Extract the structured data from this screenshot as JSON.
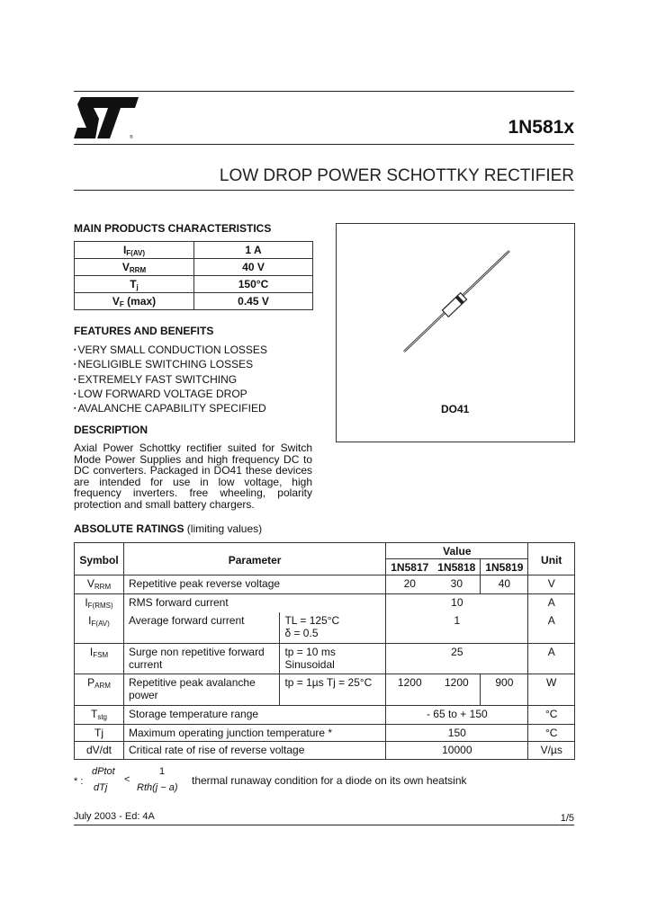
{
  "header": {
    "logo_text": "ST",
    "part": "1N581x",
    "title": "LOW DROP POWER SCHOTTKY RECTIFIER"
  },
  "main_characteristics": {
    "heading": "MAIN PRODUCTS CHARACTERISTICS",
    "rows": [
      {
        "symbol": "I",
        "sub": "F(AV)",
        "value": "1 A"
      },
      {
        "symbol": "V",
        "sub": "RRM",
        "value": "40 V"
      },
      {
        "symbol": "T",
        "sub": "j",
        "value": "150°C"
      },
      {
        "symbol": "V",
        "sub": "F",
        "suffix": " (max)",
        "value": "0.45 V"
      }
    ]
  },
  "package": {
    "label": "DO41"
  },
  "features": {
    "heading": "FEATURES AND BENEFITS",
    "items": [
      "VERY SMALL CONDUCTION LOSSES",
      "NEGLIGIBLE SWITCHING LOSSES",
      "EXTREMELY FAST SWITCHING",
      "LOW FORWARD VOLTAGE DROP",
      "AVALANCHE CAPABILITY SPECIFIED"
    ]
  },
  "description": {
    "heading": "DESCRIPTION",
    "text": "Axial Power Schottky rectifier suited for Switch Mode Power Supplies and high frequency DC to DC converters. Packaged in DO41 these devices are intended for use in low voltage, high frequency inverters. free wheeling, polarity protection and small battery chargers."
  },
  "ratings": {
    "heading": "ABSOLUTE RATINGS",
    "heading_note": "(limiting values)",
    "headers": {
      "symbol": "Symbol",
      "parameter": "Parameter",
      "value": "Value",
      "unit": "Unit",
      "parts": [
        "1N5817",
        "1N5818",
        "1N5819"
      ]
    },
    "rows": [
      {
        "sym": "V",
        "sub": "RRM",
        "param": "Repetitive peak reverse voltage",
        "cond": "",
        "values": [
          "20",
          "30",
          "40"
        ],
        "unit": "V"
      },
      {
        "sym": "I",
        "sub": "F(RMS)",
        "param": "RMS forward current",
        "cond": "",
        "value": "10",
        "unit": "A"
      },
      {
        "sym": "I",
        "sub": "F(AV)",
        "param": "Average forward current",
        "cond": "TL = 125°C",
        "cond2": "δ = 0.5",
        "value": "1",
        "unit": "A"
      },
      {
        "sym": "I",
        "sub": "FSM",
        "param": "Surge non repetitive forward current",
        "cond": "tp = 10 ms",
        "cond2": "Sinusoidal",
        "value": "25",
        "unit": "A"
      },
      {
        "sym": "P",
        "sub": "ARM",
        "param": "Repetitive peak avalanche power",
        "cond": "tp = 1µs   Tj = 25°C",
        "values": [
          "1200",
          "1200",
          "900"
        ],
        "unit": "W"
      },
      {
        "sym": "T",
        "sub": "stg",
        "param": "Storage temperature range",
        "value": "- 65  to + 150",
        "unit": "°C"
      },
      {
        "sym": "Tj",
        "sub": "",
        "param": "Maximum operating junction temperature *",
        "value": "150",
        "unit": "°C"
      },
      {
        "sym": "dV/dt",
        "sub": "",
        "param": "Critical rate of rise of reverse voltage",
        "value": "10000",
        "unit": "V/µs"
      }
    ]
  },
  "footnote": {
    "star": "* :",
    "num": "dPtot",
    "den": "dTj",
    "lt": "<",
    "num2": "1",
    "den2": "Rth(j − a)",
    "text": "thermal  runaway condition for a diode on its own heatsink"
  },
  "footer": {
    "date": "July  2003 - Ed: 4A",
    "page": "1/5"
  }
}
